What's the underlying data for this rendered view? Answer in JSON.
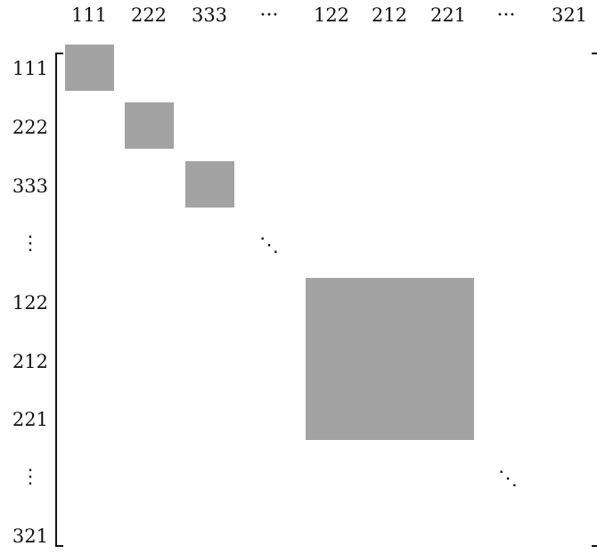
{
  "matrix": {
    "column_labels": [
      "111",
      "222",
      "333",
      "···",
      "122",
      "212",
      "221",
      "···",
      "321"
    ],
    "row_labels": [
      "111",
      "222",
      "333",
      "⋮",
      "122",
      "212",
      "221",
      "⋮",
      "321"
    ],
    "diagonal_dots": [
      "⋱",
      "⋱"
    ],
    "block_color": "#a3a3a3",
    "blocks": [
      {
        "name": "block-111",
        "rows": [
          "111"
        ],
        "cols": [
          "111"
        ]
      },
      {
        "name": "block-222",
        "rows": [
          "222"
        ],
        "cols": [
          "222"
        ]
      },
      {
        "name": "block-333",
        "rows": [
          "333"
        ],
        "cols": [
          "333"
        ]
      },
      {
        "name": "block-122-212-221",
        "rows": [
          "122",
          "212",
          "221"
        ],
        "cols": [
          "122",
          "212",
          "221"
        ]
      }
    ]
  }
}
